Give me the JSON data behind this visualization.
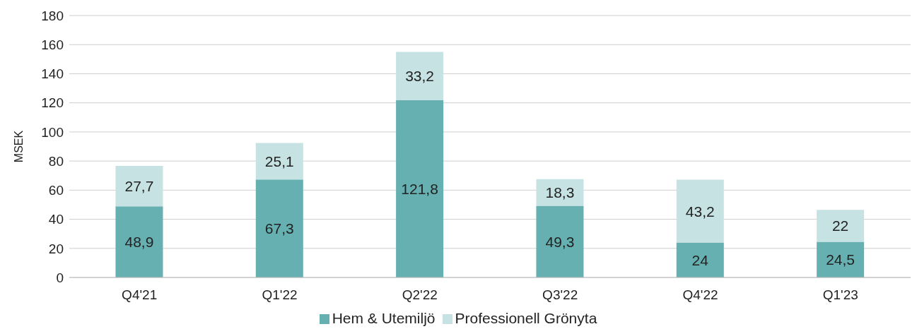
{
  "chart_data": {
    "type": "bar",
    "stacked": true,
    "ylabel": "MSEK",
    "categories": [
      "Q4'21",
      "Q1'22",
      "Q2'22",
      "Q3'22",
      "Q4'22",
      "Q1'23"
    ],
    "series": [
      {
        "name": "Hem & Utemiljö",
        "color": "#66b0b1",
        "values": [
          48.9,
          67.3,
          121.8,
          49.3,
          24,
          24.5
        ],
        "value_labels": [
          "48,9",
          "67,3",
          "121,8",
          "49,3",
          "24",
          "24,5"
        ]
      },
      {
        "name": "Professionell Grönyta",
        "color": "#c7e2e3",
        "values": [
          27.7,
          25.1,
          33.2,
          18.3,
          43.2,
          22
        ],
        "value_labels": [
          "27,7",
          "25,1",
          "33,2",
          "18,3",
          "43,2",
          "22"
        ]
      }
    ],
    "ylim": [
      0,
      180
    ],
    "yticks": [
      0,
      20,
      40,
      60,
      80,
      100,
      120,
      140,
      160,
      180
    ],
    "grid": "y",
    "legend": "bottom"
  }
}
